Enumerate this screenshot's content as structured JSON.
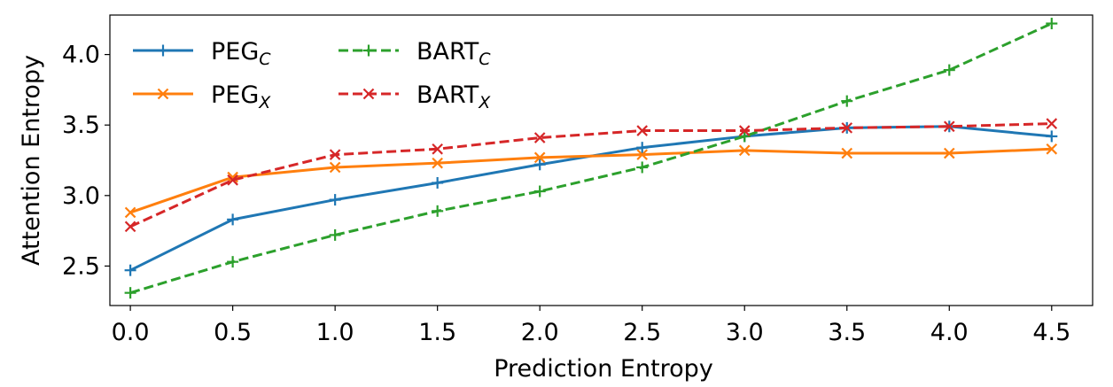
{
  "chart_data": {
    "type": "line",
    "title": "",
    "xlabel": "Prediction Entropy",
    "ylabel": "Attention Entropy",
    "x": [
      0.0,
      0.5,
      1.0,
      1.5,
      2.0,
      2.5,
      3.0,
      3.5,
      4.0,
      4.5
    ],
    "xlim": [
      -0.1,
      4.7
    ],
    "ylim": [
      2.22,
      4.28
    ],
    "xticks": [
      "0.0",
      "0.5",
      "1.0",
      "1.5",
      "2.0",
      "2.5",
      "3.0",
      "3.5",
      "4.0",
      "4.5"
    ],
    "yticks": [
      "2.5",
      "3.0",
      "3.5",
      "4.0"
    ],
    "grid": false,
    "legend_position": "top-left",
    "series": [
      {
        "name": "PEG",
        "subscript": "C",
        "color": "#1f77b4",
        "linestyle": "solid",
        "marker": "plus",
        "values": [
          2.47,
          2.83,
          2.97,
          3.09,
          3.22,
          3.34,
          3.42,
          3.48,
          3.49,
          3.42
        ]
      },
      {
        "name": "PEG",
        "subscript": "X",
        "color": "#ff7f0e",
        "linestyle": "solid",
        "marker": "x",
        "values": [
          2.88,
          3.13,
          3.2,
          3.23,
          3.27,
          3.29,
          3.32,
          3.3,
          3.3,
          3.33
        ]
      },
      {
        "name": "BART",
        "subscript": "C",
        "color": "#2ca02c",
        "linestyle": "dashed",
        "marker": "plus",
        "values": [
          2.31,
          2.53,
          2.72,
          2.89,
          3.03,
          3.2,
          3.42,
          3.67,
          3.89,
          4.22
        ]
      },
      {
        "name": "BART",
        "subscript": "X",
        "color": "#d62728",
        "linestyle": "dashed",
        "marker": "x",
        "values": [
          2.78,
          3.11,
          3.29,
          3.33,
          3.41,
          3.46,
          3.46,
          3.48,
          3.49,
          3.51
        ]
      }
    ]
  }
}
